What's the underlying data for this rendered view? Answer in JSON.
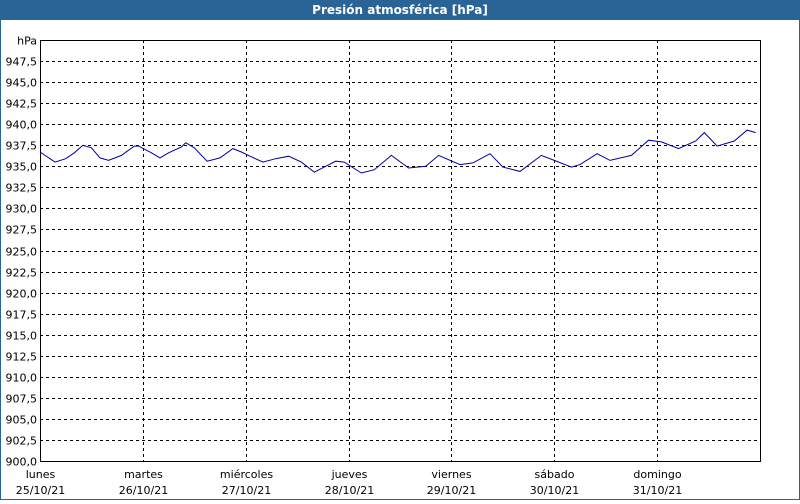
{
  "chart_data": {
    "type": "line",
    "title": "Presión atmosférica [hPa]",
    "xlim": [
      0,
      168
    ],
    "xticks": [
      {
        "value": 0,
        "label": "lunes",
        "sublabel": "25/10/21"
      },
      {
        "value": 24,
        "label": "martes",
        "sublabel": "26/10/21"
      },
      {
        "value": 48,
        "label": "miércoles",
        "sublabel": "27/10/21"
      },
      {
        "value": 72,
        "label": "jueves",
        "sublabel": "28/10/21"
      },
      {
        "value": 96,
        "label": "viernes",
        "sublabel": "29/10/21"
      },
      {
        "value": 120,
        "label": "sábado",
        "sublabel": "30/10/21"
      },
      {
        "value": 144,
        "label": "domingo",
        "sublabel": "31/10/21"
      }
    ],
    "ylim": [
      900,
      950
    ],
    "yticks": [
      {
        "value": 900,
        "label": "900,0"
      },
      {
        "value": 902.5,
        "label": "902,5"
      },
      {
        "value": 905,
        "label": "905,0"
      },
      {
        "value": 907.5,
        "label": "907,5"
      },
      {
        "value": 910,
        "label": "910,0"
      },
      {
        "value": 912.5,
        "label": "912,5"
      },
      {
        "value": 915,
        "label": "915,0"
      },
      {
        "value": 917.5,
        "label": "917,5"
      },
      {
        "value": 920,
        "label": "920,0"
      },
      {
        "value": 922.5,
        "label": "922,5"
      },
      {
        "value": 925,
        "label": "925,0"
      },
      {
        "value": 927.5,
        "label": "927,5"
      },
      {
        "value": 930,
        "label": "930,0"
      },
      {
        "value": 932.5,
        "label": "932,5"
      },
      {
        "value": 935,
        "label": "935,0"
      },
      {
        "value": 937.5,
        "label": "937,5"
      },
      {
        "value": 940,
        "label": "940,0"
      },
      {
        "value": 942.5,
        "label": "942,5"
      },
      {
        "value": 945,
        "label": "945,0"
      },
      {
        "value": 947.5,
        "label": "947,5"
      },
      {
        "value": 950,
        "label": "hPa"
      }
    ],
    "grid": true,
    "color": "#0000a0",
    "x": [
      0,
      3.5,
      6,
      8,
      10,
      12,
      14,
      16,
      19,
      22,
      23,
      26,
      28,
      30,
      33,
      34,
      36,
      39,
      42,
      45,
      47,
      49,
      52,
      55,
      58,
      61,
      64,
      69,
      71,
      75,
      78,
      82,
      86,
      90,
      93,
      98,
      101,
      105,
      108,
      112,
      117,
      120,
      124,
      126,
      130,
      133,
      138,
      140,
      142,
      145,
      149,
      153,
      155,
      158,
      162,
      165,
      167
    ],
    "values": [
      936.7,
      935.5,
      935.9,
      936.6,
      937.5,
      937.2,
      936.0,
      935.7,
      936.3,
      937.4,
      937.4,
      936.6,
      936.0,
      936.6,
      937.3,
      937.8,
      937.2,
      935.6,
      936.0,
      937.1,
      936.7,
      936.2,
      935.5,
      935.9,
      936.2,
      935.5,
      934.3,
      935.6,
      935.5,
      934.2,
      934.6,
      936.3,
      934.8,
      935.0,
      936.3,
      935.2,
      935.4,
      936.5,
      934.9,
      934.4,
      936.3,
      935.7,
      934.9,
      935.2,
      936.5,
      935.7,
      936.3,
      937.2,
      938.1,
      937.9,
      937.1,
      938.0,
      939.0,
      937.4,
      938.0,
      939.3,
      939.0
    ]
  }
}
